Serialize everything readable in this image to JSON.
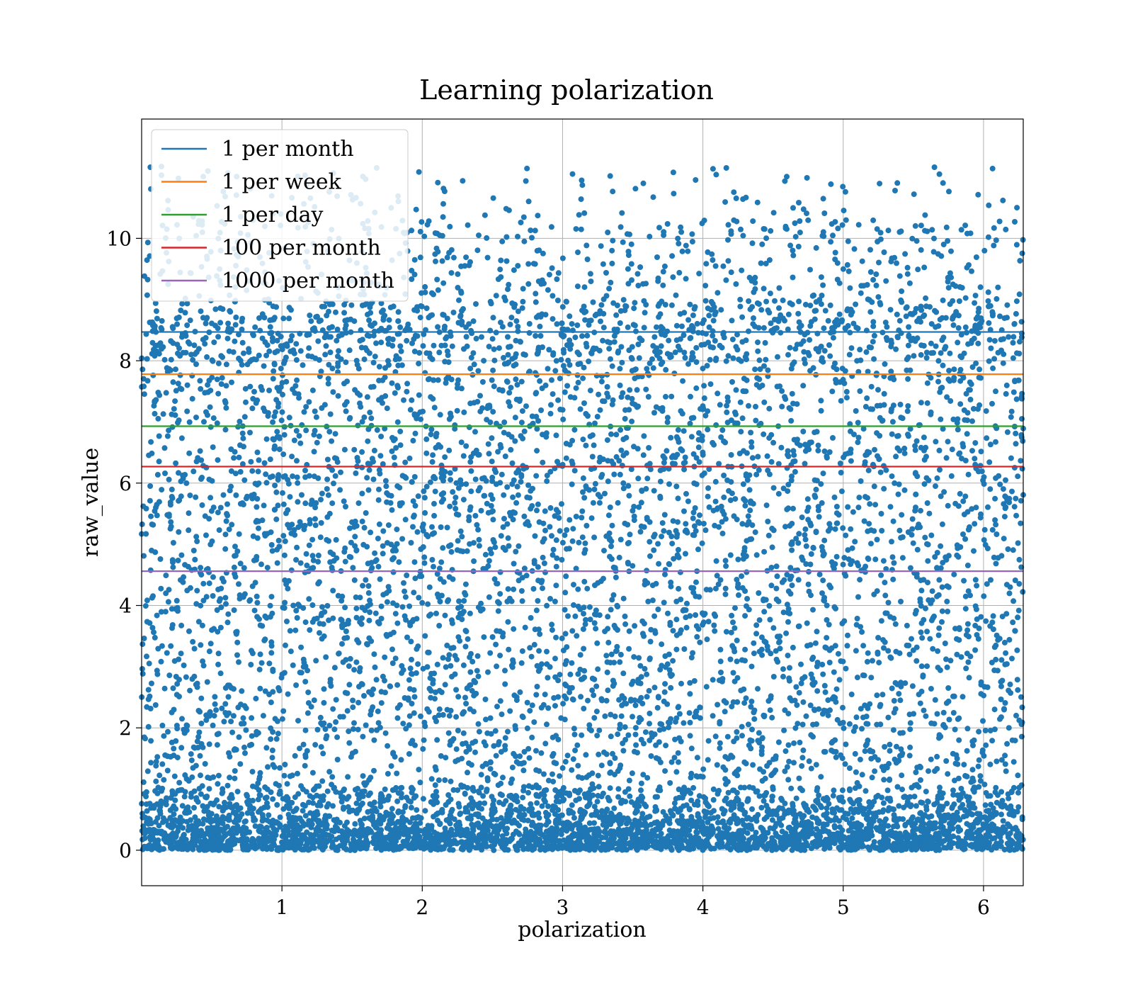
{
  "chart_data": {
    "type": "scatter",
    "title": "Learning polarization",
    "xlabel": "polarization",
    "ylabel": "raw_value",
    "xlim": [
      0.0,
      6.283
    ],
    "ylim": [
      -0.58,
      11.95
    ],
    "xticks": [
      1,
      2,
      3,
      4,
      5,
      6
    ],
    "yticks": [
      0,
      2,
      4,
      6,
      8,
      10
    ],
    "grid": true,
    "legend_position": "top-left",
    "point_color": "#1f77b4",
    "scatter_summary": {
      "x_range": [
        0.0,
        6.283
      ],
      "y_range": [
        0.0,
        11.4
      ],
      "density_note": "points densest near y=0, sparse above y=9"
    },
    "series": [
      {
        "name": "1 per month",
        "type": "hline",
        "y": 8.47,
        "color": "#1f77b4"
      },
      {
        "name": "1 per week",
        "type": "hline",
        "y": 7.78,
        "color": "#ff7f0e"
      },
      {
        "name": "1 per day",
        "type": "hline",
        "y": 6.93,
        "color": "#2ca02c"
      },
      {
        "name": "100 per month",
        "type": "hline",
        "y": 6.27,
        "color": "#d62728"
      },
      {
        "name": "1000 per month",
        "type": "hline",
        "y": 4.56,
        "color": "#9467bd"
      }
    ]
  }
}
